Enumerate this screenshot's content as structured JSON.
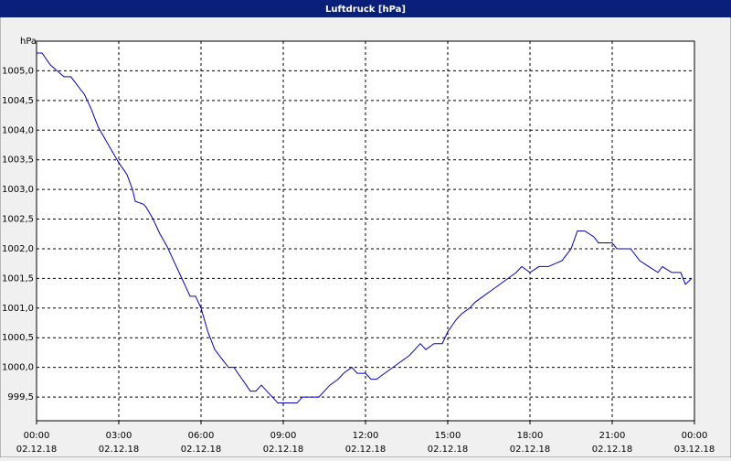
{
  "chart_data": {
    "type": "line",
    "title": "Luftdruck [hPa]",
    "y_unit": "hPa",
    "xlim": [
      0,
      24
    ],
    "ylim": [
      999.1,
      1005.5
    ],
    "xticks": [
      {
        "value": 0,
        "label": "00:00"
      },
      {
        "value": 3,
        "label": "03:00"
      },
      {
        "value": 6,
        "label": "06:00"
      },
      {
        "value": 9,
        "label": "09:00"
      },
      {
        "value": 12,
        "label": "12:00"
      },
      {
        "value": 15,
        "label": "15:00"
      },
      {
        "value": 18,
        "label": "18:00"
      },
      {
        "value": 21,
        "label": "21:00"
      },
      {
        "value": 24,
        "label": "00:00"
      }
    ],
    "xtick_dates": [
      "02.12.18",
      "02.12.18",
      "02.12.18",
      "02.12.18",
      "02.12.18",
      "02.12.18",
      "02.12.18",
      "02.12.18",
      "03.12.18"
    ],
    "yticks": [
      {
        "value": 999.5,
        "label": "999,5"
      },
      {
        "value": 1000,
        "label": "1000,0"
      },
      {
        "value": 1000.5,
        "label": "1000,5"
      },
      {
        "value": 1001,
        "label": "1001,0"
      },
      {
        "value": 1001.5,
        "label": "1001,5"
      },
      {
        "value": 1002,
        "label": "1002,0"
      },
      {
        "value": 1002.5,
        "label": "1002,5"
      },
      {
        "value": 1003,
        "label": "1003,0"
      },
      {
        "value": 1003.5,
        "label": "1003,5"
      },
      {
        "value": 1004,
        "label": "1004,0"
      },
      {
        "value": 1004.5,
        "label": "1004,5"
      },
      {
        "value": 1005,
        "label": "1005,0"
      }
    ],
    "grid": true,
    "x": [
      0,
      0.2,
      0.5,
      1,
      1.25,
      1.5,
      1.75,
      2,
      2.25,
      2.5,
      2.75,
      3,
      3.3,
      3.5,
      3.6,
      3.9,
      4,
      4.25,
      4.5,
      4.75,
      5,
      5.25,
      5.5,
      5.6,
      5.8,
      6,
      6.25,
      6.5,
      6.75,
      7,
      7.2,
      7.5,
      7.8,
      8,
      8.2,
      8.4,
      8.6,
      8.8,
      9,
      9.5,
      9.7,
      10,
      10.3,
      10.5,
      10.7,
      11,
      11.2,
      11.5,
      11.7,
      12,
      12.2,
      12.4,
      12.7,
      13,
      13.3,
      13.6,
      13.8,
      14,
      14.2,
      14.5,
      14.8,
      15,
      15.3,
      15.5,
      15.8,
      16,
      16.3,
      16.6,
      16.9,
      17.2,
      17.5,
      17.7,
      18,
      18.33,
      18.67,
      19.17,
      19.5,
      19.73,
      20,
      20.33,
      20.5,
      21,
      21.17,
      21.67,
      22,
      22.33,
      22.67,
      22.83,
      23.17,
      23.5,
      23.67,
      23.9
    ],
    "series": [
      {
        "name": "Luftdruck",
        "color": "#0000c0",
        "values": [
          1005.3,
          1005.3,
          1005.1,
          1004.9,
          1004.9,
          1004.75,
          1004.6,
          1004.35,
          1004.05,
          1003.85,
          1003.65,
          1003.45,
          1003.25,
          1003.0,
          1002.8,
          1002.75,
          1002.7,
          1002.5,
          1002.25,
          1002.05,
          1001.8,
          1001.55,
          1001.3,
          1001.2,
          1001.2,
          1001.0,
          1000.6,
          1000.3,
          1000.15,
          1000.0,
          1000.0,
          999.8,
          999.6,
          999.6,
          999.7,
          999.6,
          999.5,
          999.4,
          999.4,
          999.4,
          999.5,
          999.5,
          999.5,
          999.6,
          999.7,
          999.8,
          999.9,
          1000.0,
          999.9,
          999.9,
          999.8,
          999.8,
          999.9,
          1000.0,
          1000.1,
          1000.2,
          1000.3,
          1000.4,
          1000.3,
          1000.4,
          1000.4,
          1000.6,
          1000.8,
          1000.9,
          1001.0,
          1001.1,
          1001.2,
          1001.3,
          1001.4,
          1001.5,
          1001.6,
          1001.7,
          1001.6,
          1001.7,
          1001.7,
          1001.8,
          1002.0,
          1002.3,
          1002.3,
          1002.2,
          1002.1,
          1002.1,
          1002.0,
          1002.0,
          1001.8,
          1001.7,
          1001.6,
          1001.7,
          1001.6,
          1001.6,
          1001.4,
          1001.5
        ]
      }
    ]
  }
}
